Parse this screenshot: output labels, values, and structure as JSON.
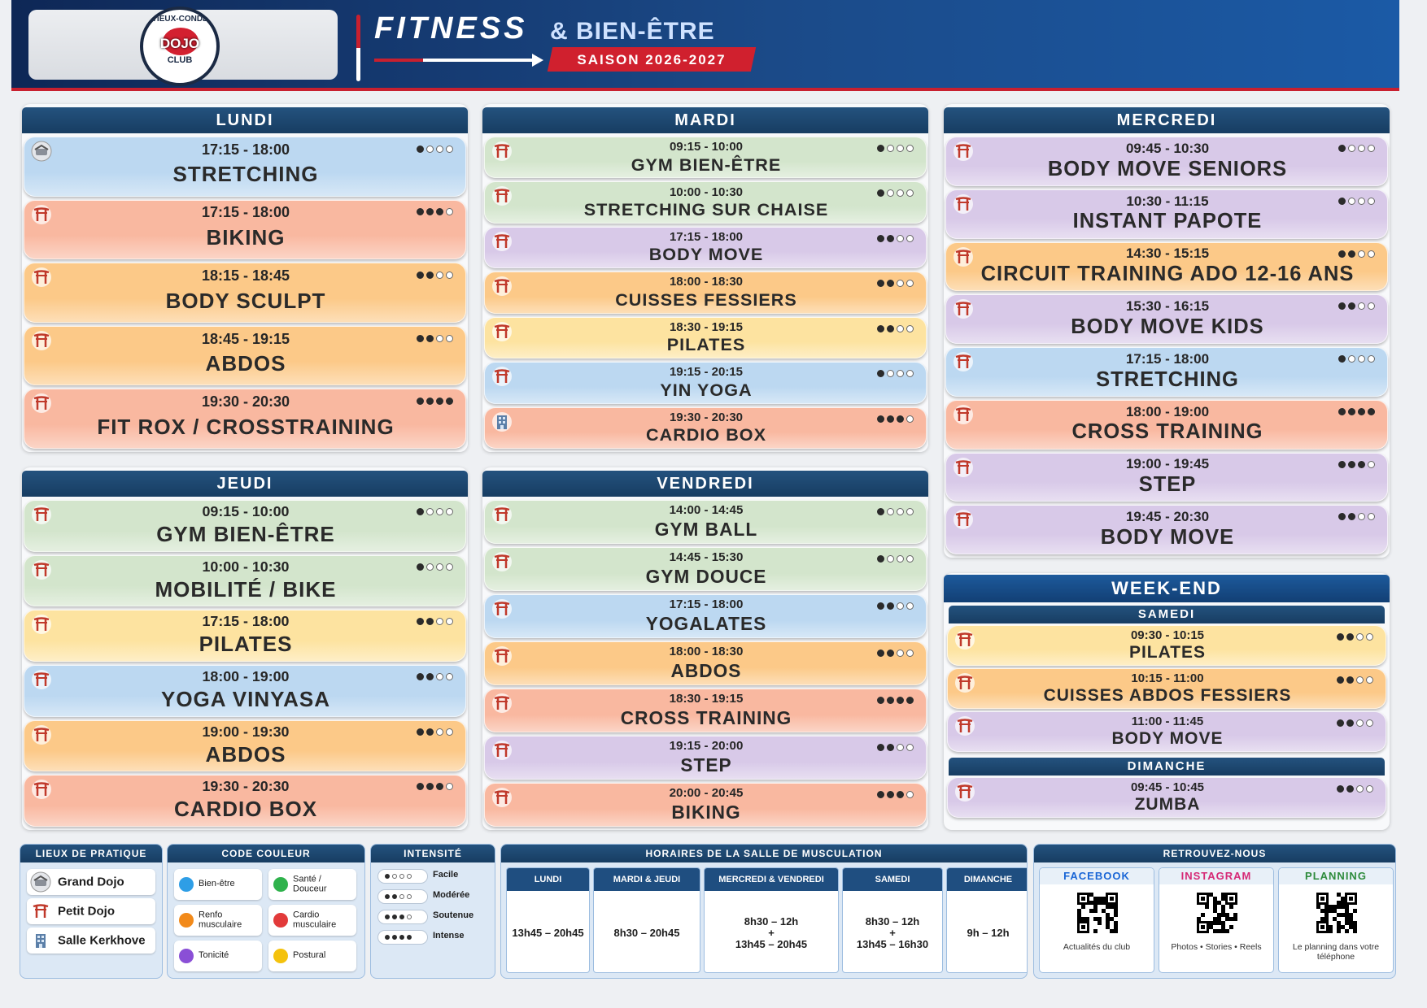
{
  "header": {
    "logo": {
      "top": "VIEUX-CONDÉ",
      "middle": "DOJO",
      "bottom": "CLUB"
    },
    "title": "FITNESS",
    "title_suffix": "& BIEN-ÊTRE",
    "season": "SAISON 2026-2027"
  },
  "days": [
    {
      "name": "LUNDI",
      "classes": [
        {
          "time": "17:15 - 18:00",
          "name": "STRETCHING",
          "color": "#bcd8f1",
          "venue": 0,
          "intensity": 1
        },
        {
          "time": "17:15 - 18:00",
          "name": "BIKING",
          "color": "#f9b8a0",
          "venue": 1,
          "intensity": 3
        },
        {
          "time": "18:15 - 18:45",
          "name": "BODY SCULPT",
          "color": "#fcc988",
          "venue": 1,
          "intensity": 2
        },
        {
          "time": "18:45 - 19:15",
          "name": "ABDOS",
          "color": "#fcc988",
          "venue": 1,
          "intensity": 2
        },
        {
          "time": "19:30 - 20:30",
          "name": "FIT ROX / CROSSTRAINING",
          "color": "#f9b8a0",
          "venue": 1,
          "intensity": 4
        }
      ]
    },
    {
      "name": "MARDI",
      "classes": [
        {
          "time": "09:15 - 10:00",
          "name": "GYM BIEN-ÊTRE",
          "color": "#d3e5cc",
          "venue": 1,
          "intensity": 1
        },
        {
          "time": "10:00 - 10:30",
          "name": "STRETCHING SUR CHAISE",
          "color": "#d3e5cc",
          "venue": 1,
          "intensity": 1
        },
        {
          "time": "17:15 - 18:00",
          "name": "BODY MOVE",
          "color": "#d8c9e8",
          "venue": 1,
          "intensity": 2
        },
        {
          "time": "18:00 - 18:30",
          "name": "CUISSES FESSIERS",
          "color": "#fcc988",
          "venue": 1,
          "intensity": 2
        },
        {
          "time": "18:30 - 19:15",
          "name": "PILATES",
          "color": "#fde3a0",
          "venue": 1,
          "intensity": 2
        },
        {
          "time": "19:15 - 20:15",
          "name": "YIN YOGA",
          "color": "#bcd8f1",
          "venue": 1,
          "intensity": 1
        },
        {
          "time": "19:30 - 20:30",
          "name": "CARDIO BOX",
          "color": "#f9b8a0",
          "venue": 2,
          "intensity": 3
        }
      ]
    },
    {
      "name": "MERCREDI",
      "classes": [
        {
          "time": "09:45 - 10:30",
          "name": "BODY MOVE SENIORS",
          "color": "#d8c9e8",
          "venue": 1,
          "intensity": 1
        },
        {
          "time": "10:30 - 11:15",
          "name": "INSTANT PAPOTE",
          "color": "#d8c9e8",
          "venue": 1,
          "intensity": 1
        },
        {
          "time": "14:30 - 15:15",
          "name": "CIRCUIT TRAINING ADO 12-16 ANS",
          "color": "#fcc988",
          "venue": 1,
          "intensity": 2
        },
        {
          "time": "15:30 - 16:15",
          "name": "BODY MOVE KIDS",
          "color": "#d8c9e8",
          "venue": 1,
          "intensity": 2
        },
        {
          "time": "17:15 - 18:00",
          "name": "STRETCHING",
          "color": "#bcd8f1",
          "venue": 1,
          "intensity": 1
        },
        {
          "time": "18:00 - 19:00",
          "name": "CROSS TRAINING",
          "color": "#f9b8a0",
          "venue": 1,
          "intensity": 4
        },
        {
          "time": "19:00 - 19:45",
          "name": "STEP",
          "color": "#d8c9e8",
          "venue": 1,
          "intensity": 3
        },
        {
          "time": "19:45 - 20:30",
          "name": "BODY MOVE",
          "color": "#d8c9e8",
          "venue": 1,
          "intensity": 2
        }
      ]
    },
    {
      "name": "JEUDI",
      "classes": [
        {
          "time": "09:15 - 10:00",
          "name": "GYM BIEN-ÊTRE",
          "color": "#d3e5cc",
          "venue": 1,
          "intensity": 1
        },
        {
          "time": "10:00 - 10:30",
          "name": "MOBILITÉ / BIKE",
          "color": "#d3e5cc",
          "venue": 1,
          "intensity": 1
        },
        {
          "time": "17:15 - 18:00",
          "name": "PILATES",
          "color": "#fde3a0",
          "venue": 1,
          "intensity": 2
        },
        {
          "time": "18:00 - 19:00",
          "name": "YOGA VINYASA",
          "color": "#bcd8f1",
          "venue": 1,
          "intensity": 2
        },
        {
          "time": "19:00 - 19:30",
          "name": "ABDOS",
          "color": "#fcc988",
          "venue": 1,
          "intensity": 2
        },
        {
          "time": "19:30 - 20:30",
          "name": "CARDIO BOX",
          "color": "#f9b8a0",
          "venue": 1,
          "intensity": 3
        }
      ]
    },
    {
      "name": "VENDREDI",
      "classes": [
        {
          "time": "14:00 - 14:45",
          "name": "GYM BALL",
          "color": "#d3e5cc",
          "venue": 1,
          "intensity": 1
        },
        {
          "time": "14:45 - 15:30",
          "name": "GYM DOUCE",
          "color": "#d3e5cc",
          "venue": 1,
          "intensity": 1
        },
        {
          "time": "17:15 - 18:00",
          "name": "YOGALATES",
          "color": "#bcd8f1",
          "venue": 1,
          "intensity": 2
        },
        {
          "time": "18:00 - 18:30",
          "name": "ABDOS",
          "color": "#fcc988",
          "venue": 1,
          "intensity": 2
        },
        {
          "time": "18:30 - 19:15",
          "name": "CROSS TRAINING",
          "color": "#f9b8a0",
          "venue": 1,
          "intensity": 4
        },
        {
          "time": "19:15 - 20:00",
          "name": "STEP",
          "color": "#d8c9e8",
          "venue": 1,
          "intensity": 2
        },
        {
          "time": "20:00 - 20:45",
          "name": "BIKING",
          "color": "#f9b8a0",
          "venue": 1,
          "intensity": 3
        }
      ]
    }
  ],
  "weekend": {
    "title": "WEEK-END",
    "days": [
      {
        "name": "SAMEDI",
        "classes": [
          {
            "time": "09:30 - 10:15",
            "name": "PILATES",
            "color": "#fde3a0",
            "venue": 1,
            "intensity": 2
          },
          {
            "time": "10:15 - 11:00",
            "name": "CUISSES ABDOS FESSIERS",
            "color": "#fcc988",
            "venue": 1,
            "intensity": 2
          },
          {
            "time": "11:00 - 11:45",
            "name": "BODY MOVE",
            "color": "#d8c9e8",
            "venue": 1,
            "intensity": 2
          }
        ]
      },
      {
        "name": "DIMANCHE",
        "classes": [
          {
            "time": "09:45 - 10:45",
            "name": "ZUMBA",
            "color": "#d8c9e8",
            "venue": 1,
            "intensity": 2
          }
        ]
      }
    ]
  },
  "legend": {
    "venues": {
      "title": "LIEUX DE PRATIQUE",
      "items": [
        "Grand Dojo",
        "Petit Dojo",
        "Salle Kerkhove"
      ]
    },
    "colors": {
      "title": "CODE COULEUR",
      "items": [
        {
          "label": "Bien-être",
          "color": "#2e9ee6"
        },
        {
          "label": "Santé / Douceur",
          "color": "#2fb24c"
        },
        {
          "label": "Renfo musculaire",
          "color": "#f28a1a"
        },
        {
          "label": "Cardio musculaire",
          "color": "#e23a3a"
        },
        {
          "label": "Tonicité",
          "color": "#8a4fd6"
        },
        {
          "label": "Postural",
          "color": "#f4c20d"
        }
      ]
    },
    "intensity": {
      "title": "INTENSITÉ",
      "items": [
        {
          "label": "Facile",
          "level": 1
        },
        {
          "label": "Modérée",
          "level": 2
        },
        {
          "label": "Soutenue",
          "level": 3
        },
        {
          "label": "Intense",
          "level": 4
        }
      ]
    }
  },
  "gym_hours": {
    "title": "HORAIRES DE LA SALLE DE MUSCULATION",
    "columns": [
      {
        "days": "LUNDI",
        "hours": [
          "13h45 – 20h45"
        ]
      },
      {
        "days": "MARDI & JEUDI",
        "hours": [
          "8h30 – 20h45"
        ]
      },
      {
        "days": "MERCREDI & VENDREDI",
        "hours": [
          "8h30 – 12h",
          "+",
          "13h45 – 20h45"
        ]
      },
      {
        "days": "SAMEDI",
        "hours": [
          "8h30 – 12h",
          "+",
          "13h45 – 16h30"
        ]
      },
      {
        "days": "DIMANCHE",
        "hours": [
          "9h – 12h"
        ]
      }
    ]
  },
  "social": {
    "title": "RETROUVEZ-NOUS",
    "items": [
      {
        "name": "FACEBOOK",
        "caption": "Actualités du club",
        "color": "#1a66d6"
      },
      {
        "name": "INSTAGRAM",
        "caption": "Photos • Stories • Reels",
        "color": "#d62976"
      },
      {
        "name": "PLANNING",
        "caption": "Le planning dans votre téléphone",
        "color": "#2e8b3c"
      }
    ]
  }
}
